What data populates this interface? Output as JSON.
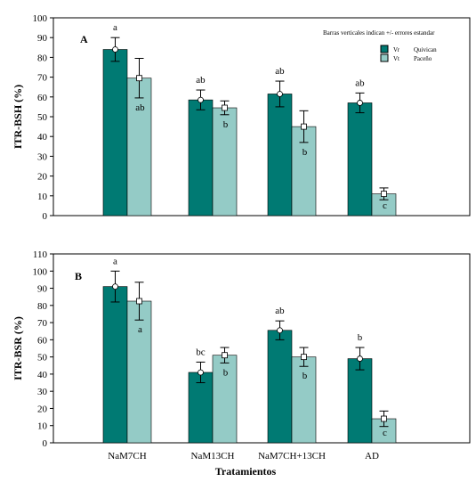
{
  "colors": {
    "vr": "#007A73",
    "vt": "#94CBC6",
    "frame": "#000000"
  },
  "shared": {
    "xlabel": "Tratamientos",
    "note": "Barras verticales indican +/- errores estandar",
    "legend": [
      {
        "marker": "Vr",
        "name": "Quivican"
      },
      {
        "marker": "Vt",
        "name": "Paceño"
      }
    ]
  },
  "chart_data": [
    {
      "type": "bar",
      "panel": "A",
      "ylabel": "ITR-BSH (%)",
      "ylim": [
        0,
        100
      ],
      "yticks": [
        0,
        10,
        20,
        30,
        40,
        50,
        60,
        70,
        80,
        90,
        100
      ],
      "categories": [
        "NaM7CH",
        "NaM13CH",
        "NaM7CH+13CH",
        "AD"
      ],
      "show_category_labels": false,
      "legend": "top-right",
      "series": [
        {
          "name": "Quivican",
          "key": "vr",
          "values": [
            84,
            58.5,
            61.5,
            57
          ],
          "errors": [
            6,
            5,
            6.5,
            5
          ],
          "letters": [
            "a",
            "ab",
            "ab",
            "ab"
          ]
        },
        {
          "name": "Paceño",
          "key": "vt",
          "values": [
            69.5,
            54.5,
            45,
            11
          ],
          "errors": [
            10,
            3.5,
            8,
            3
          ],
          "letters": [
            "ab",
            "b",
            "b",
            "c"
          ]
        }
      ]
    },
    {
      "type": "bar",
      "panel": "B",
      "ylabel": "ITR-BSR (%)",
      "ylim": [
        0,
        110
      ],
      "yticks": [
        0,
        10,
        20,
        30,
        40,
        50,
        60,
        70,
        80,
        90,
        100,
        110
      ],
      "categories": [
        "NaM7CH",
        "NaM13CH",
        "NaM7CH+13CH",
        "AD"
      ],
      "show_category_labels": true,
      "legend": "none",
      "series": [
        {
          "name": "Quivican",
          "key": "vr",
          "values": [
            91,
            41,
            65.5,
            49
          ],
          "errors": [
            9,
            6,
            5.5,
            6.5
          ],
          "letters": [
            "a",
            "bc",
            "ab",
            "b"
          ]
        },
        {
          "name": "Paceño",
          "key": "vt",
          "values": [
            82.5,
            51,
            50,
            14
          ],
          "errors": [
            11,
            4.5,
            5.5,
            4.5
          ],
          "letters": [
            "a",
            "b",
            "b",
            "c"
          ]
        }
      ]
    }
  ]
}
